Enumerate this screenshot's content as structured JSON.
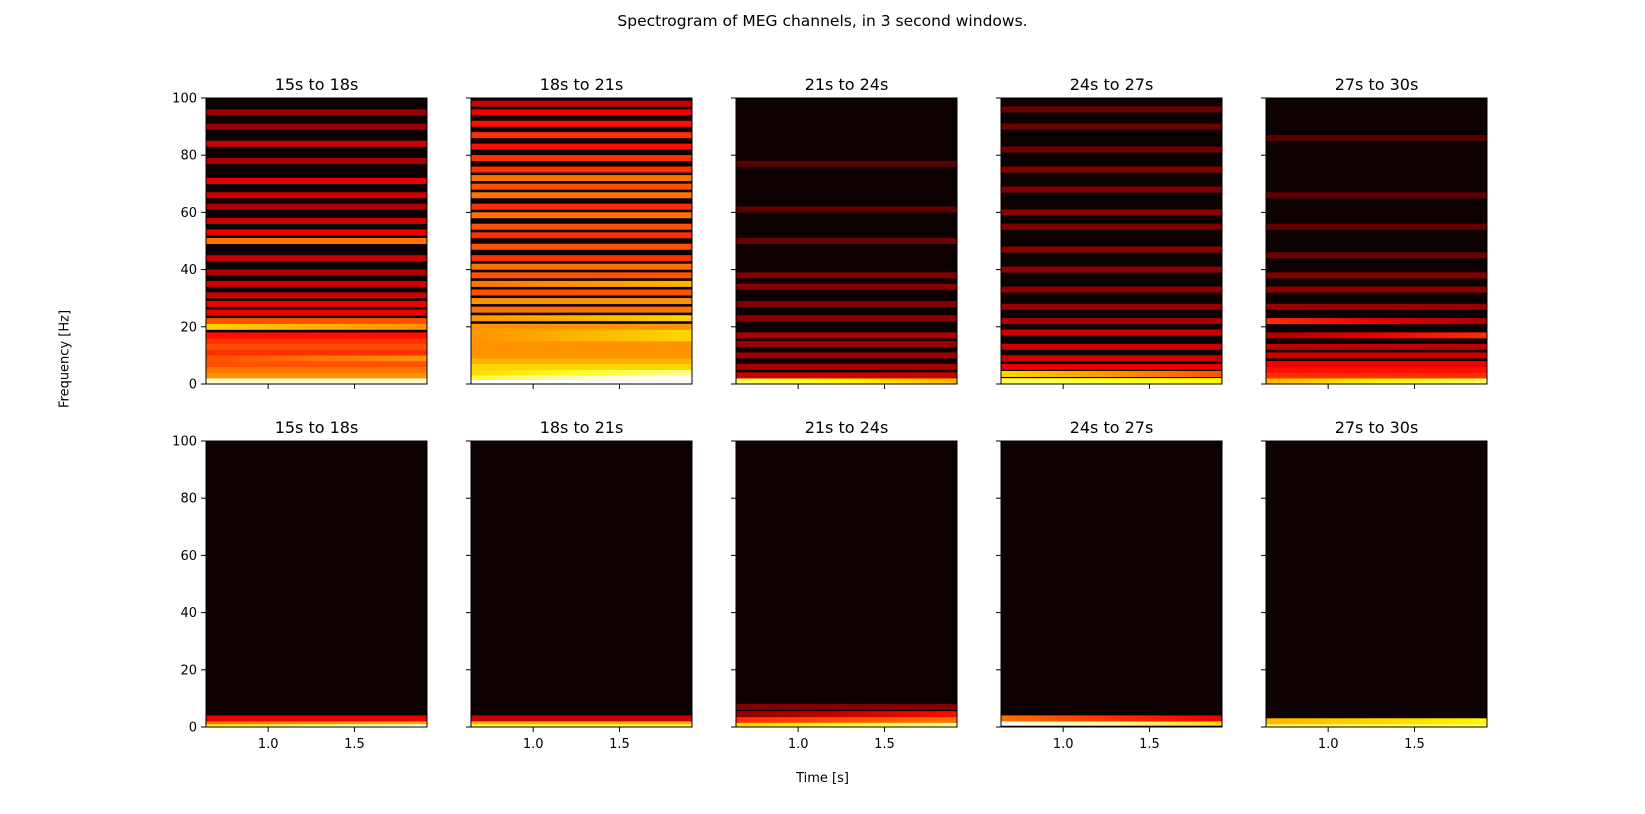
{
  "figure": {
    "suptitle": "Spectrogram of MEG channels, in 3 second windows.",
    "xlabel": "Time [s]",
    "ylabel": "Frequency [Hz]"
  },
  "chart_data": {
    "type": "heatmap",
    "title": "Spectrogram of MEG channels, in 3 second windows.",
    "xlabel": "Time [s]",
    "ylabel": "Frequency [Hz]",
    "xlim": [
      0.64,
      1.92
    ],
    "ylim": [
      0,
      100
    ],
    "xticks": [
      1.0,
      1.5
    ],
    "xtick_labels": [
      "1.0",
      "1.5"
    ],
    "yticks": [
      0,
      20,
      40,
      60,
      80,
      100
    ],
    "ytick_labels": [
      "0",
      "20",
      "40",
      "60",
      "80",
      "100"
    ],
    "colormap": "hot",
    "colors": {
      "background": "#0d0000",
      "low": "#2a0000",
      "mid": "#c80000",
      "high": "#ff9000",
      "peak": "#ffffff"
    },
    "grid": false,
    "legend": "none",
    "rows": [
      {
        "panels": [
          {
            "title": "15s to 18s",
            "bands": [
              {
                "f": 1,
                "i": 0.95,
                "t": 0.0
              },
              {
                "f": 3,
                "i": 0.6,
                "t": 0.0
              },
              {
                "f": 5,
                "i": 0.55,
                "t": 0.0
              },
              {
                "f": 7,
                "i": 0.5,
                "t": 0.0
              },
              {
                "f": 9,
                "i": 0.55,
                "t": 0.1
              },
              {
                "f": 11,
                "i": 0.45,
                "t": 0.0
              },
              {
                "f": 13,
                "i": 0.5,
                "t": 0.0
              },
              {
                "f": 15,
                "i": 0.45,
                "t": 0.0
              },
              {
                "f": 17,
                "i": 0.4,
                "t": 0.0
              },
              {
                "f": 20,
                "i": 0.65,
                "t": -0.1
              },
              {
                "f": 22,
                "i": 0.5,
                "t": 0.0
              },
              {
                "f": 25,
                "i": 0.35,
                "t": 0.0
              },
              {
                "f": 28,
                "i": 0.35,
                "t": 0.0
              },
              {
                "f": 31,
                "i": 0.3,
                "t": 0.0
              },
              {
                "f": 35,
                "i": 0.3,
                "t": 0.0
              },
              {
                "f": 39,
                "i": 0.25,
                "t": 0.0
              },
              {
                "f": 44,
                "i": 0.3,
                "t": 0.0
              },
              {
                "f": 50,
                "i": 0.55,
                "t": 0.0
              },
              {
                "f": 53,
                "i": 0.35,
                "t": 0.0
              },
              {
                "f": 57,
                "i": 0.3,
                "t": 0.0
              },
              {
                "f": 62,
                "i": 0.25,
                "t": 0.0
              },
              {
                "f": 66,
                "i": 0.3,
                "t": 0.0
              },
              {
                "f": 71,
                "i": 0.35,
                "t": 0.0
              },
              {
                "f": 78,
                "i": 0.25,
                "t": 0.0
              },
              {
                "f": 84,
                "i": 0.3,
                "t": 0.0
              },
              {
                "f": 90,
                "i": 0.22,
                "t": 0.0
              },
              {
                "f": 95,
                "i": 0.22,
                "t": 0.0
              }
            ]
          },
          {
            "title": "18s to 21s",
            "bands": [
              {
                "f": 1,
                "i": 1.0,
                "t": 0.0
              },
              {
                "f": 2.5,
                "i": 0.95,
                "t": 0.3
              },
              {
                "f": 4,
                "i": 0.8,
                "t": 0.2
              },
              {
                "f": 6,
                "i": 0.7,
                "t": 0.0
              },
              {
                "f": 8,
                "i": 0.65,
                "t": 0.0
              },
              {
                "f": 10,
                "i": 0.6,
                "t": 0.0
              },
              {
                "f": 12,
                "i": 0.6,
                "t": 0.0
              },
              {
                "f": 14,
                "i": 0.6,
                "t": 0.0
              },
              {
                "f": 16,
                "i": 0.65,
                "t": 0.1
              },
              {
                "f": 18,
                "i": 0.65,
                "t": 0.1
              },
              {
                "f": 20,
                "i": 0.6,
                "t": 0.0
              },
              {
                "f": 23,
                "i": 0.65,
                "t": 0.1
              },
              {
                "f": 26,
                "i": 0.55,
                "t": 0.0
              },
              {
                "f": 29,
                "i": 0.6,
                "t": 0.0
              },
              {
                "f": 32,
                "i": 0.5,
                "t": 0.0
              },
              {
                "f": 35,
                "i": 0.6,
                "t": 0.1
              },
              {
                "f": 38,
                "i": 0.5,
                "t": 0.0
              },
              {
                "f": 41,
                "i": 0.55,
                "t": 0.0
              },
              {
                "f": 44,
                "i": 0.45,
                "t": 0.0
              },
              {
                "f": 48,
                "i": 0.5,
                "t": 0.0
              },
              {
                "f": 52,
                "i": 0.45,
                "t": 0.0
              },
              {
                "f": 55,
                "i": 0.5,
                "t": 0.0
              },
              {
                "f": 59,
                "i": 0.55,
                "t": 0.0
              },
              {
                "f": 62,
                "i": 0.45,
                "t": 0.0
              },
              {
                "f": 66,
                "i": 0.55,
                "t": 0.0
              },
              {
                "f": 69,
                "i": 0.5,
                "t": 0.0
              },
              {
                "f": 72,
                "i": 0.55,
                "t": 0.0
              },
              {
                "f": 75,
                "i": 0.45,
                "t": 0.0
              },
              {
                "f": 79,
                "i": 0.45,
                "t": 0.0
              },
              {
                "f": 83,
                "i": 0.4,
                "t": 0.0
              },
              {
                "f": 87,
                "i": 0.45,
                "t": 0.0
              },
              {
                "f": 91,
                "i": 0.4,
                "t": 0.0
              },
              {
                "f": 95,
                "i": 0.35,
                "t": 0.0
              },
              {
                "f": 98,
                "i": 0.3,
                "t": 0.0
              }
            ]
          },
          {
            "title": "21s to 24s",
            "bands": [
              {
                "f": 1,
                "i": 0.75,
                "t": -0.2
              },
              {
                "f": 3,
                "i": 0.3,
                "t": 0.0
              },
              {
                "f": 6,
                "i": 0.25,
                "t": 0.0
              },
              {
                "f": 10,
                "i": 0.22,
                "t": 0.0
              },
              {
                "f": 14,
                "i": 0.22,
                "t": 0.0
              },
              {
                "f": 17,
                "i": 0.25,
                "t": 0.0
              },
              {
                "f": 23,
                "i": 0.2,
                "t": 0.0
              },
              {
                "f": 28,
                "i": 0.18,
                "t": 0.0
              },
              {
                "f": 34,
                "i": 0.2,
                "t": 0.0
              },
              {
                "f": 38,
                "i": 0.18,
                "t": 0.0
              },
              {
                "f": 50,
                "i": 0.15,
                "t": 0.0
              },
              {
                "f": 61,
                "i": 0.13,
                "t": 0.0
              },
              {
                "f": 77,
                "i": 0.12,
                "t": 0.0
              }
            ]
          },
          {
            "title": "24s to 27s",
            "bands": [
              {
                "f": 1,
                "i": 0.8,
                "t": -0.1
              },
              {
                "f": 3.5,
                "i": 0.6,
                "t": -0.2
              },
              {
                "f": 6,
                "i": 0.35,
                "t": 0.0
              },
              {
                "f": 9,
                "i": 0.3,
                "t": 0.0
              },
              {
                "f": 13,
                "i": 0.3,
                "t": 0.0
              },
              {
                "f": 18,
                "i": 0.3,
                "t": 0.0
              },
              {
                "f": 22,
                "i": 0.25,
                "t": 0.0
              },
              {
                "f": 27,
                "i": 0.22,
                "t": 0.0
              },
              {
                "f": 33,
                "i": 0.2,
                "t": 0.0
              },
              {
                "f": 40,
                "i": 0.2,
                "t": 0.0
              },
              {
                "f": 47,
                "i": 0.2,
                "t": 0.0
              },
              {
                "f": 55,
                "i": 0.18,
                "t": 0.0
              },
              {
                "f": 60,
                "i": 0.2,
                "t": 0.0
              },
              {
                "f": 68,
                "i": 0.18,
                "t": 0.0
              },
              {
                "f": 75,
                "i": 0.18,
                "t": 0.0
              },
              {
                "f": 82,
                "i": 0.16,
                "t": 0.0
              },
              {
                "f": 90,
                "i": 0.15,
                "t": 0.0
              },
              {
                "f": 96,
                "i": 0.15,
                "t": 0.0
              }
            ]
          },
          {
            "title": "27s to 30s",
            "bands": [
              {
                "f": 1,
                "i": 0.75,
                "t": 0.2
              },
              {
                "f": 3,
                "i": 0.45,
                "t": 0.0
              },
              {
                "f": 5,
                "i": 0.4,
                "t": 0.0
              },
              {
                "f": 7,
                "i": 0.35,
                "t": 0.0
              },
              {
                "f": 10,
                "i": 0.3,
                "t": 0.0
              },
              {
                "f": 13,
                "i": 0.28,
                "t": 0.0
              },
              {
                "f": 17,
                "i": 0.35,
                "t": 0.2
              },
              {
                "f": 22,
                "i": 0.35,
                "t": -0.2
              },
              {
                "f": 27,
                "i": 0.22,
                "t": 0.0
              },
              {
                "f": 33,
                "i": 0.2,
                "t": 0.0
              },
              {
                "f": 38,
                "i": 0.18,
                "t": 0.0
              },
              {
                "f": 45,
                "i": 0.15,
                "t": 0.0
              },
              {
                "f": 55,
                "i": 0.14,
                "t": 0.0
              },
              {
                "f": 66,
                "i": 0.13,
                "t": 0.0
              },
              {
                "f": 86,
                "i": 0.12,
                "t": 0.0
              }
            ]
          }
        ]
      },
      {
        "panels": [
          {
            "title": "15s to 18s",
            "bands": [
              {
                "f": 1,
                "i": 0.9,
                "t": 0.3
              },
              {
                "f": 2,
                "i": 0.6,
                "t": 0.1
              },
              {
                "f": 3,
                "i": 0.35,
                "t": 0.0
              }
            ]
          },
          {
            "title": "18s to 21s",
            "bands": [
              {
                "f": 1,
                "i": 0.85,
                "t": 0.0
              },
              {
                "f": 2,
                "i": 0.65,
                "t": 0.0
              },
              {
                "f": 3,
                "i": 0.3,
                "t": 0.0
              }
            ]
          },
          {
            "title": "21s to 24s",
            "bands": [
              {
                "f": 1,
                "i": 0.8,
                "t": 0.2
              },
              {
                "f": 2.5,
                "i": 0.5,
                "t": 0.1
              },
              {
                "f": 4.5,
                "i": 0.3,
                "t": 0.2
              },
              {
                "f": 7,
                "i": 0.18,
                "t": 0.0
              }
            ]
          },
          {
            "title": "24s to 27s",
            "bands": [
              {
                "f": 1.5,
                "i": 0.9,
                "t": -0.4
              },
              {
                "f": 3,
                "i": 0.45,
                "t": -0.2
              }
            ]
          },
          {
            "title": "27s to 30s",
            "bands": [
              {
                "f": 1,
                "i": 0.85,
                "t": 0.0
              },
              {
                "f": 2,
                "i": 0.7,
                "t": 0.1
              }
            ]
          }
        ]
      }
    ]
  }
}
